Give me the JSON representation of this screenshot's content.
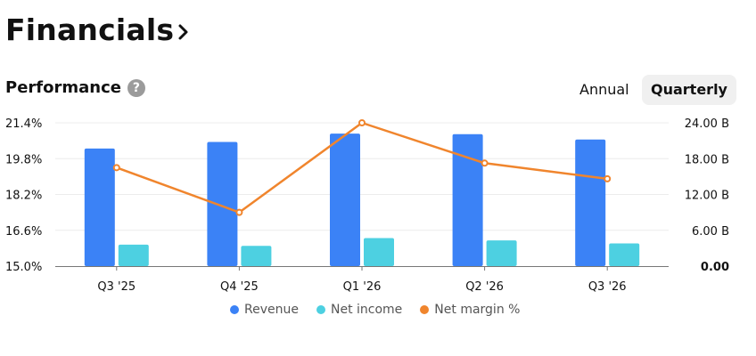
{
  "header": {
    "title": "Financials"
  },
  "section": {
    "title": "Performance",
    "help": "?"
  },
  "period_toggle": {
    "annual": "Annual",
    "quarterly": "Quarterly",
    "selected": "Quarterly"
  },
  "colors": {
    "revenue": "#3b82f6",
    "net_income": "#4dd0e1",
    "net_margin": "#f0852d"
  },
  "chart_data": {
    "type": "bar",
    "categories": [
      "Q3 '25",
      "Q4 '25",
      "Q1 '26",
      "Q2 '26",
      "Q3 '26"
    ],
    "series": [
      {
        "name": "Revenue",
        "axis": "right",
        "values": [
          19.7,
          20.8,
          22.2,
          22.1,
          21.2
        ]
      },
      {
        "name": "Net income",
        "axis": "right",
        "values": [
          3.6,
          3.4,
          4.7,
          4.3,
          3.8
        ]
      },
      {
        "name": "Net margin %",
        "axis": "left",
        "type": "line",
        "values": [
          19.4,
          17.4,
          21.4,
          19.6,
          18.9
        ]
      }
    ],
    "y_left": {
      "ticks": [
        "21.4%",
        "19.8%",
        "18.2%",
        "16.6%",
        "15.0%"
      ],
      "ylim": [
        15.0,
        21.4
      ]
    },
    "y_right": {
      "ticks": [
        "24.00 B",
        "18.00 B",
        "12.00 B",
        "6.00 B",
        "0.00"
      ],
      "ylim": [
        0,
        24
      ]
    },
    "legend": [
      "Revenue",
      "Net income",
      "Net margin %"
    ],
    "legend_position": "bottom",
    "grid": true
  }
}
